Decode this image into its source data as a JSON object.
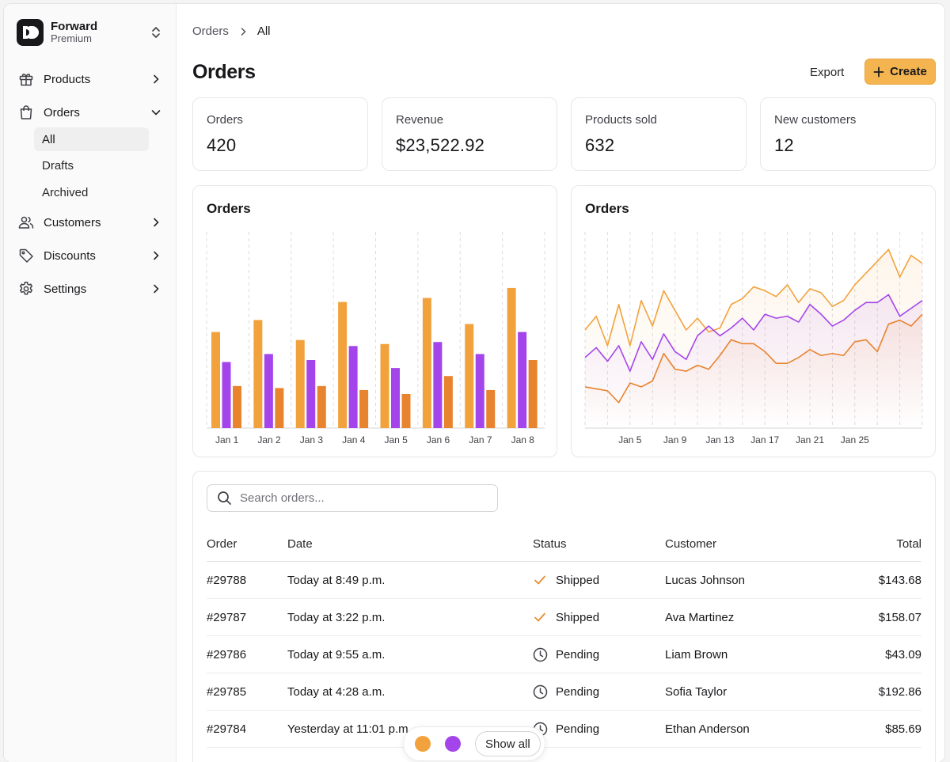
{
  "brand": {
    "name": "Forward",
    "plan": "Premium"
  },
  "sidebar": {
    "items": [
      {
        "label": "Products",
        "icon": "gift-icon"
      },
      {
        "label": "Orders",
        "icon": "shopping-bag-icon",
        "subitems": [
          {
            "label": "All",
            "active": true
          },
          {
            "label": "Drafts"
          },
          {
            "label": "Archived"
          }
        ]
      },
      {
        "label": "Customers",
        "icon": "users-icon"
      },
      {
        "label": "Discounts",
        "icon": "tag-icon"
      },
      {
        "label": "Settings",
        "icon": "gear-icon"
      }
    ]
  },
  "breadcrumb": {
    "parent": "Orders",
    "current": "All"
  },
  "page": {
    "title": "Orders",
    "export_label": "Export",
    "create_label": "Create"
  },
  "stats": [
    {
      "label": "Orders",
      "value": "420"
    },
    {
      "label": "Revenue",
      "value": "$23,522.92"
    },
    {
      "label": "Products sold",
      "value": "632"
    },
    {
      "label": "New customers",
      "value": "12"
    }
  ],
  "colors": {
    "orange": "#f2a23c",
    "purple": "#a445ec",
    "dark_orange": "#e8832e",
    "accent_button": "#f4b450"
  },
  "chart_data": [
    {
      "type": "bar",
      "title": "Orders",
      "categories": [
        "Jan 1",
        "Jan 2",
        "Jan 3",
        "Jan 4",
        "Jan 5",
        "Jan 6",
        "Jan 7",
        "Jan 8"
      ],
      "series": [
        {
          "color": "#f2a23c",
          "values": [
            48,
            54,
            44,
            63,
            42,
            65,
            52,
            70
          ]
        },
        {
          "color": "#a445ec",
          "values": [
            33,
            37,
            34,
            41,
            30,
            43,
            37,
            48
          ]
        },
        {
          "color": "#e8832e",
          "values": [
            21,
            20,
            21,
            19,
            17,
            26,
            19,
            34
          ]
        }
      ],
      "ylim": [
        0,
        100
      ],
      "grid": true
    },
    {
      "type": "area",
      "title": "Orders",
      "x_ticks": [
        "Jan 5",
        "Jan 9",
        "Jan 13",
        "Jan 17",
        "Jan 21",
        "Jan 25"
      ],
      "x_start_day": 1,
      "series": [
        {
          "color": "#f2a23c",
          "values": [
            50,
            57,
            42,
            63,
            42,
            65,
            52,
            70,
            60,
            50,
            56,
            49,
            51,
            63,
            66,
            72,
            70,
            67,
            73,
            64,
            71,
            69,
            62,
            65,
            73,
            79,
            85,
            91,
            77,
            88,
            84
          ]
        },
        {
          "color": "#a445ec",
          "values": [
            36,
            41,
            34,
            42,
            29,
            44,
            35,
            48,
            39,
            35,
            47,
            52,
            47,
            51,
            56,
            50,
            58,
            56,
            57,
            54,
            63,
            58,
            52,
            55,
            60,
            64,
            64,
            68,
            57,
            61,
            65
          ]
        },
        {
          "color": "#e8832e",
          "values": [
            21,
            20,
            19,
            13,
            23,
            21,
            24,
            38,
            30,
            29,
            32,
            30,
            37,
            45,
            43,
            43,
            39,
            33,
            33,
            36,
            40,
            37,
            38,
            37,
            44,
            45,
            39,
            53,
            55,
            52,
            58
          ]
        }
      ],
      "ylim": [
        0,
        100
      ],
      "grid": true
    }
  ],
  "search": {
    "placeholder": "Search orders..."
  },
  "table": {
    "headers": {
      "order": "Order",
      "date": "Date",
      "status": "Status",
      "customer": "Customer",
      "total": "Total"
    },
    "rows": [
      {
        "order": "#29788",
        "date": "Today at 8:49 p.m.",
        "status": "Shipped",
        "status_icon": "check-icon",
        "customer": "Lucas Johnson",
        "total": "$143.68"
      },
      {
        "order": "#29787",
        "date": "Today at 3:22 p.m.",
        "status": "Shipped",
        "status_icon": "check-icon",
        "customer": "Ava Martinez",
        "total": "$158.07"
      },
      {
        "order": "#29786",
        "date": "Today at 9:55 a.m.",
        "status": "Pending",
        "status_icon": "clock-icon",
        "customer": "Liam Brown",
        "total": "$43.09"
      },
      {
        "order": "#29785",
        "date": "Today at 4:28 a.m.",
        "status": "Pending",
        "status_icon": "clock-icon",
        "customer": "Sofia Taylor",
        "total": "$192.86"
      },
      {
        "order": "#29784",
        "date": "Yesterday at 11:01 p.m.",
        "status": "Pending",
        "status_icon": "clock-icon",
        "customer": "Ethan Anderson",
        "total": "$85.69"
      }
    ]
  },
  "legend": {
    "show_all_label": "Show all"
  }
}
